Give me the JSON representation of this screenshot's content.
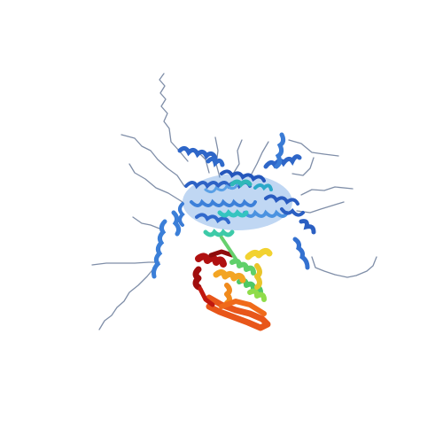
{
  "image": {
    "subject": "protein-structure-ribbon",
    "background_color": "#ffffff",
    "palette": {
      "coil_gray": "#7a8aa0",
      "blue_dark": "#1f4fb8",
      "blue": "#3a7bd5",
      "blue_light": "#5aa0e6",
      "cyan": "#35c4c0",
      "green": "#5fd06a",
      "yellow": "#f2d230",
      "orange": "#f08a1c",
      "orange_red": "#e8561a",
      "red": "#b01010"
    }
  }
}
